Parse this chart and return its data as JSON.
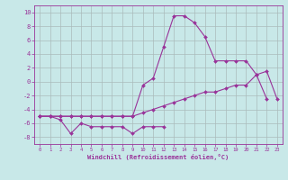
{
  "background_color": "#c8e8e8",
  "grid_color": "#aabbbb",
  "line_color": "#993399",
  "xlim": [
    -0.5,
    23.5
  ],
  "ylim": [
    -9,
    11
  ],
  "xlabel": "Windchill (Refroidissement éolien,°C)",
  "yticks": [
    -8,
    -6,
    -4,
    -2,
    0,
    2,
    4,
    6,
    8,
    10
  ],
  "xticks": [
    0,
    1,
    2,
    3,
    4,
    5,
    6,
    7,
    8,
    9,
    10,
    11,
    12,
    13,
    14,
    15,
    16,
    17,
    18,
    19,
    20,
    21,
    22,
    23
  ],
  "series": [
    {
      "x": [
        0,
        1,
        2,
        3,
        4,
        5,
        6,
        7,
        8,
        9,
        10,
        11,
        12,
        13,
        14,
        15,
        16,
        17,
        18,
        19,
        20,
        21,
        22
      ],
      "y": [
        -5,
        -5,
        -5,
        -5,
        -5,
        -5,
        -5,
        -5,
        -5,
        -5,
        -0.5,
        0.5,
        5,
        9.5,
        9.5,
        8.5,
        6.5,
        3,
        3,
        3,
        3,
        1,
        -2.5
      ]
    },
    {
      "x": [
        0,
        1,
        2,
        3,
        4,
        5,
        6,
        7,
        8,
        9,
        10,
        11,
        12,
        13,
        14,
        15,
        16,
        17,
        18,
        19,
        20,
        21,
        22,
        23
      ],
      "y": [
        -5,
        -5,
        -5,
        -5,
        -5,
        -5,
        -5,
        -5,
        -5,
        -5,
        -4.5,
        -4,
        -3.5,
        -3,
        -2.5,
        -2,
        -1.5,
        -1.5,
        -1,
        -0.5,
        -0.5,
        1,
        1.5,
        -2.5
      ]
    },
    {
      "x": [
        0,
        1,
        2,
        3,
        4,
        5,
        6,
        7,
        8,
        9,
        10,
        11,
        12
      ],
      "y": [
        -5,
        -5,
        -5.5,
        -7.5,
        -6,
        -6.5,
        -6.5,
        -6.5,
        -6.5,
        -7.5,
        -6.5,
        -6.5,
        -6.5
      ]
    }
  ]
}
